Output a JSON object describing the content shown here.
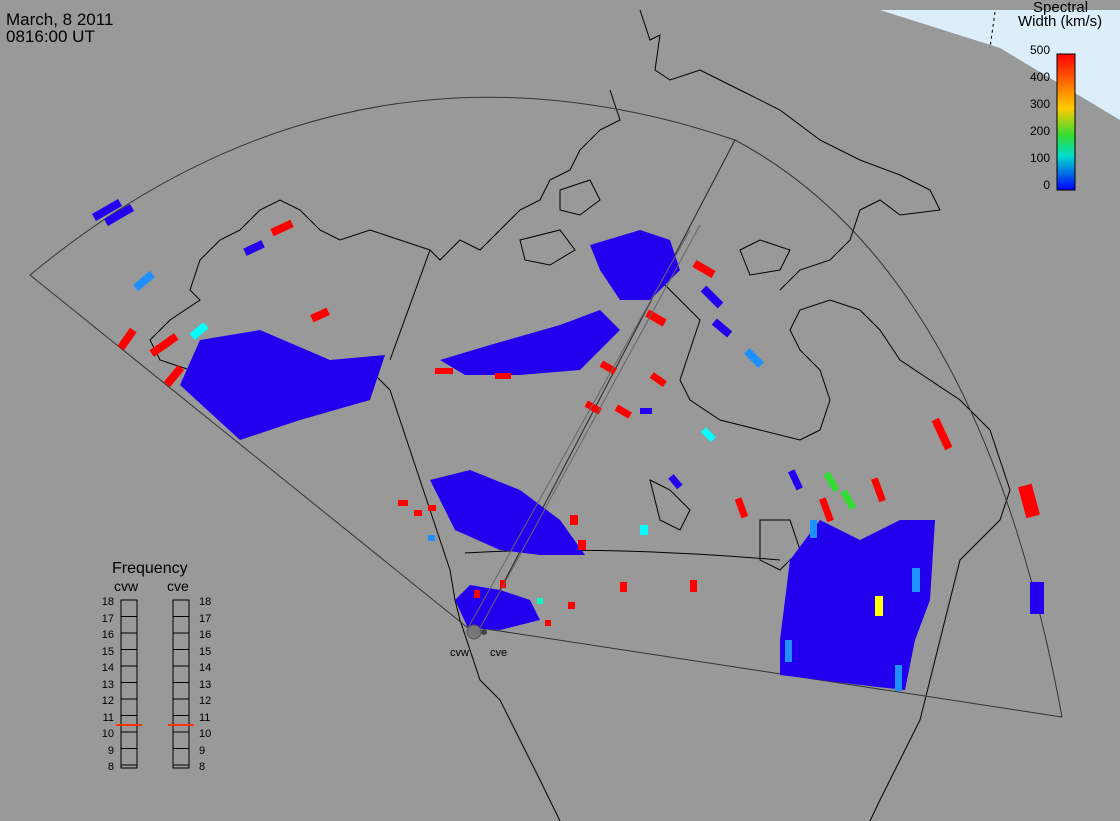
{
  "title": {
    "date": "March, 8 2011",
    "time": "0816:00 UT"
  },
  "colorbar": {
    "title_line1": "Spectral",
    "title_line2": "Width (km/s)",
    "ticks": [
      "500",
      "400",
      "300",
      "200",
      "100",
      "0"
    ],
    "colors": [
      "#ff0000",
      "#ff6600",
      "#ffcc00",
      "#33dd33",
      "#00ddcc",
      "#0000ff"
    ]
  },
  "frequency_panel": {
    "title": "Frequency",
    "radars": [
      {
        "name": "cvw",
        "freq_mhz": 10.8
      },
      {
        "name": "cve",
        "freq_mhz": 10.8
      }
    ],
    "ticks": [
      "18",
      "17",
      "16",
      "15",
      "14",
      "13",
      "12",
      "11",
      "10",
      "9",
      "8"
    ]
  },
  "radar_sites": [
    "cvw",
    "cve"
  ],
  "colors": {
    "land": "#999999",
    "ocean": "#ffffff",
    "ice": "#dceefa",
    "scatter_low": "#2200ee",
    "scatter_high": "#ff0000"
  }
}
